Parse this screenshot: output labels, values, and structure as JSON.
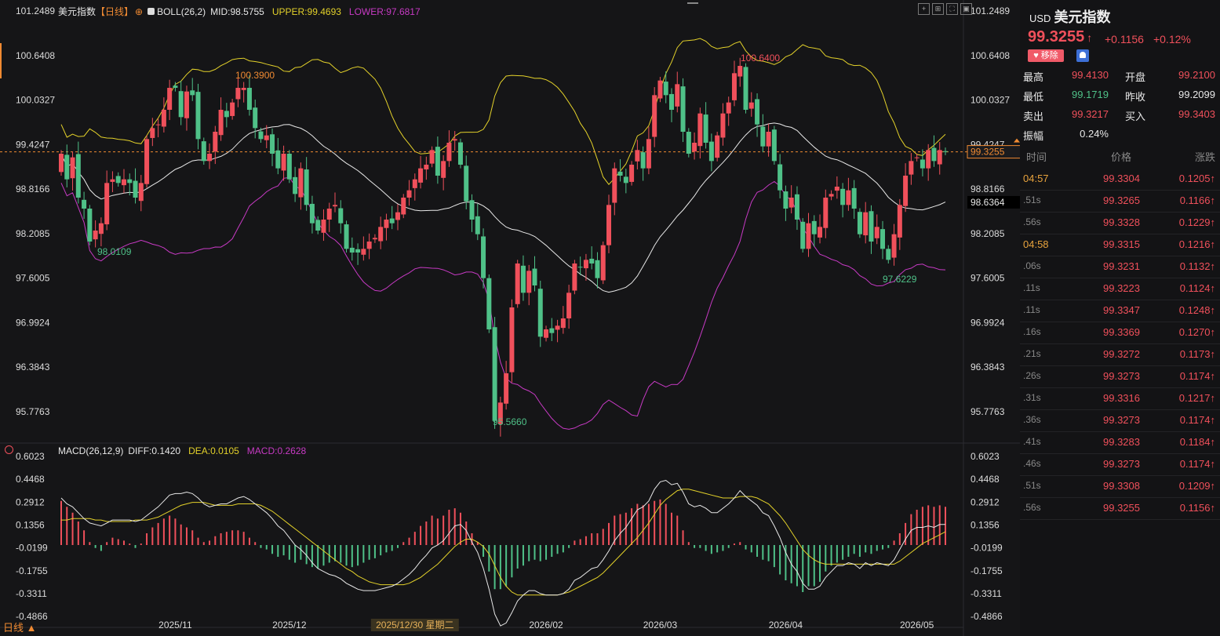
{
  "colors": {
    "up": "#f0505b",
    "down": "#4fc188",
    "mid": "#e8e8e8",
    "upper": "#e3d12a",
    "lower": "#c73ac4",
    "orange": "#f08a32",
    "grid": "#2a2a2e"
  },
  "main_legend": {
    "name": "美元指数",
    "period": "【日线】",
    "boll": "BOLL(26,2)",
    "mid": "MID:98.5755",
    "upper": "UPPER:99.4693",
    "lower": "LOWER:97.6817"
  },
  "macd_legend": {
    "name": "MACD(26,12,9)",
    "diff": "DIFF:0.1420",
    "dea": "DEA:0.0105",
    "macd": "MACD:0.2628"
  },
  "period_switch": "日线 ▲",
  "crosshair_date": "2025/12/30 星期二",
  "price_axis_left": [
    "101.2489",
    "100.6408",
    "100.0327",
    "99.4247",
    "98.8166",
    "98.2085",
    "97.6005",
    "96.9924",
    "96.3843",
    "95.7763"
  ],
  "price_axis_right": [
    "101.2489",
    "100.6408",
    "100.0327",
    "99.4247",
    "98.8166",
    "98.2085",
    "97.6005",
    "96.9924",
    "96.3843",
    "95.7763"
  ],
  "macd_axis": [
    "0.6023",
    "0.4468",
    "0.2912",
    "0.1356",
    "-0.0199",
    "-0.1755",
    "-0.3311",
    "-0.4866"
  ],
  "x_labels": [
    "2025/11",
    "2025/12",
    "2026/02",
    "2026/03",
    "2026/04",
    "2026/05"
  ],
  "price_tags": {
    "current": "99.3255",
    "mid": "98.6364"
  },
  "annotations": {
    "high1": "100.3900",
    "high2": "100.6400",
    "low1": "98.0109",
    "low2": "95.5660",
    "low3": "97.6229"
  },
  "toolbar_icons": [
    "crosshair-icon",
    "expand-icon",
    "fullscreen-icon",
    "restore-icon"
  ],
  "quote": {
    "symbol": "USD",
    "name": "美元指数",
    "price": "99.3255",
    "arrow": "↑",
    "change": "+0.1156",
    "change_pct": "+0.12%",
    "remove_label": "移除",
    "stats": [
      {
        "label": "最高",
        "value": "99.4130",
        "label2": "开盘",
        "value2": "99.2100"
      },
      {
        "label": "最低",
        "value": "99.1719",
        "label2": "昨收",
        "value2": "99.2099"
      },
      {
        "label": "卖出",
        "value": "99.3217",
        "label2": "买入",
        "value2": "99.3403"
      },
      {
        "label": "振幅",
        "value": "0.24%",
        "label2": "",
        "value2": ""
      }
    ],
    "tick_headers": [
      "时间",
      "价格",
      "涨跌"
    ],
    "ticks": [
      {
        "time": "04:57",
        "price": "99.3304",
        "change": "0.1205↑",
        "major": true
      },
      {
        "time": ".51s",
        "price": "99.3265",
        "change": "0.1166↑",
        "major": false
      },
      {
        "time": ".56s",
        "price": "99.3328",
        "change": "0.1229↑",
        "major": false
      },
      {
        "time": "04:58",
        "price": "99.3315",
        "change": "0.1216↑",
        "major": true
      },
      {
        "time": ".06s",
        "price": "99.3231",
        "change": "0.1132↑",
        "major": false
      },
      {
        "time": ".11s",
        "price": "99.3223",
        "change": "0.1124↑",
        "major": false
      },
      {
        "time": ".11s",
        "price": "99.3347",
        "change": "0.1248↑",
        "major": false
      },
      {
        "time": ".16s",
        "price": "99.3369",
        "change": "0.1270↑",
        "major": false
      },
      {
        "time": ".21s",
        "price": "99.3272",
        "change": "0.1173↑",
        "major": false
      },
      {
        "time": ".26s",
        "price": "99.3273",
        "change": "0.1174↑",
        "major": false
      },
      {
        "time": ".31s",
        "price": "99.3316",
        "change": "0.1217↑",
        "major": false
      },
      {
        "time": ".36s",
        "price": "99.3273",
        "change": "0.1174↑",
        "major": false
      },
      {
        "time": ".41s",
        "price": "99.3283",
        "change": "0.1184↑",
        "major": false
      },
      {
        "time": ".46s",
        "price": "99.3273",
        "change": "0.1174↑",
        "major": false
      },
      {
        "time": ".51s",
        "price": "99.3308",
        "change": "0.1209↑",
        "major": false
      },
      {
        "time": ".56s",
        "price": "99.3255",
        "change": "0.1156↑",
        "major": false
      }
    ]
  },
  "chart_data": {
    "type": "candlestick",
    "price_range": [
      95.4,
      101.4
    ],
    "macd_range": [
      -0.56,
      0.64
    ],
    "closes": [
      99.3,
      98.95,
      99.25,
      98.7,
      98.55,
      98.1,
      98.25,
      98.35,
      98.9,
      98.95,
      98.9,
      98.95,
      98.9,
      98.7,
      98.9,
      99.5,
      99.65,
      99.7,
      99.9,
      100.2,
      100.2,
      99.8,
      100.15,
      100.1,
      99.5,
      99.2,
      99.3,
      99.6,
      99.9,
      99.8,
      100.0,
      100.2,
      100.2,
      99.9,
      99.65,
      99.5,
      99.55,
      99.3,
      99.1,
      99.3,
      98.95,
      98.75,
      99.1,
      98.6,
      98.35,
      98.25,
      98.4,
      98.55,
      98.6,
      98.35,
      98.0,
      97.95,
      97.95,
      98.0,
      98.1,
      98.15,
      98.3,
      98.4,
      98.35,
      98.5,
      98.7,
      98.8,
      98.95,
      99.1,
      99.15,
      99.35,
      99.0,
      99.2,
      99.45,
      99.5,
      99.15,
      98.65,
      98.4,
      98.2,
      97.6,
      96.9,
      95.65,
      95.9,
      96.3,
      97.2,
      97.8,
      97.4,
      97.7,
      97.5,
      96.8,
      96.9,
      96.85,
      96.95,
      97.05,
      97.4,
      97.8,
      97.75,
      97.85,
      97.8,
      97.6,
      98.05,
      98.6,
      99.1,
      99.0,
      98.9,
      99.15,
      99.35,
      99.1,
      99.5,
      100.1,
      100.3,
      100.1,
      99.9,
      100.25,
      99.6,
      99.3,
      99.45,
      99.85,
      99.45,
      99.2,
      99.55,
      99.85,
      100.0,
      100.4,
      100.5,
      99.9,
      100.0,
      99.7,
      99.4,
      99.6,
      99.2,
      98.8,
      98.55,
      98.7,
      98.4,
      98.0,
      98.35,
      98.2,
      98.3,
      98.7,
      98.75,
      98.85,
      98.6,
      98.8,
      98.55,
      98.2,
      98.5,
      98.1,
      98.3,
      98.0,
      97.85,
      98.2,
      98.6,
      99.0,
      99.2,
      99.25,
      99.1,
      99.35,
      99.2,
      99.35,
      99.33
    ]
  },
  "macd_data": {
    "hist": [
      0.3,
      0.26,
      0.22,
      0.16,
      0.1,
      0.02,
      -0.02,
      -0.04,
      0.02,
      0.05,
      0.04,
      0.03,
      0.01,
      -0.02,
      0.01,
      0.08,
      0.12,
      0.15,
      0.18,
      0.2,
      0.18,
      0.14,
      0.12,
      0.1,
      0.05,
      0.02,
      0.03,
      0.06,
      0.08,
      0.09,
      0.1,
      0.1,
      0.09,
      0.05,
      0.02,
      -0.02,
      -0.03,
      -0.06,
      -0.08,
      -0.07,
      -0.1,
      -0.12,
      -0.1,
      -0.13,
      -0.15,
      -0.16,
      -0.14,
      -0.12,
      -0.11,
      -0.12,
      -0.14,
      -0.15,
      -0.14,
      -0.12,
      -0.1,
      -0.09,
      -0.07,
      -0.05,
      -0.04,
      -0.02,
      0.02,
      0.05,
      0.09,
      0.13,
      0.16,
      0.2,
      0.18,
      0.2,
      0.24,
      0.25,
      0.22,
      0.16,
      0.08,
      0.02,
      -0.08,
      -0.18,
      -0.3,
      -0.3,
      -0.28,
      -0.22,
      -0.16,
      -0.14,
      -0.11,
      -0.1,
      -0.11,
      -0.1,
      -0.08,
      -0.06,
      -0.05,
      -0.02,
      0.03,
      0.04,
      0.06,
      0.08,
      0.08,
      0.11,
      0.15,
      0.2,
      0.21,
      0.22,
      0.25,
      0.28,
      0.27,
      0.28,
      0.3,
      0.31,
      0.28,
      0.22,
      0.2,
      0.1,
      0.02,
      -0.02,
      -0.02,
      -0.04,
      -0.06,
      -0.05,
      -0.04,
      -0.02,
      0.01,
      0.02,
      -0.03,
      -0.05,
      -0.08,
      -0.1,
      -0.11,
      -0.15,
      -0.2,
      -0.24,
      -0.26,
      -0.28,
      -0.32,
      -0.28,
      -0.28,
      -0.25,
      -0.18,
      -0.14,
      -0.12,
      -0.1,
      -0.08,
      -0.06,
      -0.08,
      -0.05,
      -0.06,
      -0.04,
      -0.03,
      -0.02,
      0.03,
      0.08,
      0.15,
      0.21,
      0.24,
      0.26,
      0.27,
      0.26,
      0.27,
      0.26
    ],
    "diff": [
      0.32,
      0.28,
      0.26,
      0.22,
      0.18,
      0.15,
      0.14,
      0.13,
      0.15,
      0.17,
      0.17,
      0.17,
      0.17,
      0.16,
      0.17,
      0.2,
      0.23,
      0.26,
      0.3,
      0.34,
      0.35,
      0.35,
      0.36,
      0.35,
      0.32,
      0.28,
      0.26,
      0.27,
      0.28,
      0.28,
      0.3,
      0.32,
      0.33,
      0.31,
      0.28,
      0.25,
      0.22,
      0.18,
      0.13,
      0.1,
      0.05,
      0.0,
      -0.03,
      -0.07,
      -0.12,
      -0.16,
      -0.18,
      -0.2,
      -0.21,
      -0.23,
      -0.26,
      -0.28,
      -0.3,
      -0.31,
      -0.31,
      -0.31,
      -0.3,
      -0.29,
      -0.28,
      -0.26,
      -0.23,
      -0.2,
      -0.16,
      -0.11,
      -0.07,
      -0.02,
      0.0,
      0.03,
      0.08,
      0.13,
      0.14,
      0.1,
      0.02,
      -0.05,
      -0.16,
      -0.3,
      -0.47,
      -0.55,
      -0.53,
      -0.46,
      -0.38,
      -0.34,
      -0.31,
      -0.31,
      -0.33,
      -0.34,
      -0.34,
      -0.34,
      -0.33,
      -0.3,
      -0.24,
      -0.22,
      -0.19,
      -0.16,
      -0.15,
      -0.1,
      -0.04,
      0.03,
      0.08,
      0.12,
      0.18,
      0.24,
      0.26,
      0.3,
      0.38,
      0.43,
      0.44,
      0.41,
      0.42,
      0.36,
      0.28,
      0.26,
      0.27,
      0.25,
      0.22,
      0.22,
      0.25,
      0.28,
      0.32,
      0.37,
      0.33,
      0.3,
      0.27,
      0.22,
      0.2,
      0.13,
      0.05,
      -0.05,
      -0.13,
      -0.18,
      -0.26,
      -0.3,
      -0.3,
      -0.28,
      -0.22,
      -0.18,
      -0.14,
      -0.14,
      -0.12,
      -0.13,
      -0.16,
      -0.12,
      -0.14,
      -0.12,
      -0.13,
      -0.14,
      -0.1,
      -0.03,
      0.04,
      0.1,
      0.12,
      0.12,
      0.13,
      0.12,
      0.14,
      0.14
    ],
    "dea": [
      0.17,
      0.17,
      0.18,
      0.18,
      0.18,
      0.18,
      0.17,
      0.17,
      0.16,
      0.16,
      0.16,
      0.16,
      0.16,
      0.17,
      0.17,
      0.17,
      0.18,
      0.19,
      0.21,
      0.23,
      0.25,
      0.27,
      0.28,
      0.29,
      0.29,
      0.29,
      0.28,
      0.27,
      0.27,
      0.27,
      0.27,
      0.28,
      0.28,
      0.28,
      0.28,
      0.27,
      0.25,
      0.23,
      0.2,
      0.17,
      0.14,
      0.11,
      0.08,
      0.05,
      0.02,
      -0.01,
      -0.04,
      -0.07,
      -0.1,
      -0.13,
      -0.16,
      -0.18,
      -0.21,
      -0.23,
      -0.25,
      -0.26,
      -0.27,
      -0.27,
      -0.27,
      -0.27,
      -0.27,
      -0.26,
      -0.24,
      -0.22,
      -0.19,
      -0.16,
      -0.13,
      -0.09,
      -0.05,
      -0.01,
      0.02,
      0.04,
      0.04,
      0.02,
      -0.01,
      -0.06,
      -0.14,
      -0.22,
      -0.28,
      -0.32,
      -0.34,
      -0.34,
      -0.34,
      -0.34,
      -0.34,
      -0.34,
      -0.34,
      -0.34,
      -0.33,
      -0.32,
      -0.3,
      -0.28,
      -0.26,
      -0.24,
      -0.22,
      -0.19,
      -0.15,
      -0.11,
      -0.07,
      -0.03,
      0.01,
      0.05,
      0.1,
      0.15,
      0.21,
      0.27,
      0.31,
      0.34,
      0.37,
      0.38,
      0.38,
      0.37,
      0.36,
      0.35,
      0.34,
      0.33,
      0.32,
      0.32,
      0.32,
      0.33,
      0.33,
      0.33,
      0.32,
      0.3,
      0.28,
      0.24,
      0.2,
      0.15,
      0.09,
      0.03,
      -0.03,
      -0.07,
      -0.1,
      -0.12,
      -0.13,
      -0.13,
      -0.13,
      -0.13,
      -0.13,
      -0.13,
      -0.13,
      -0.13,
      -0.13,
      -0.13,
      -0.13,
      -0.13,
      -0.13,
      -0.11,
      -0.08,
      -0.05,
      -0.02,
      0.01,
      0.03,
      0.05,
      0.07,
      0.09
    ]
  }
}
